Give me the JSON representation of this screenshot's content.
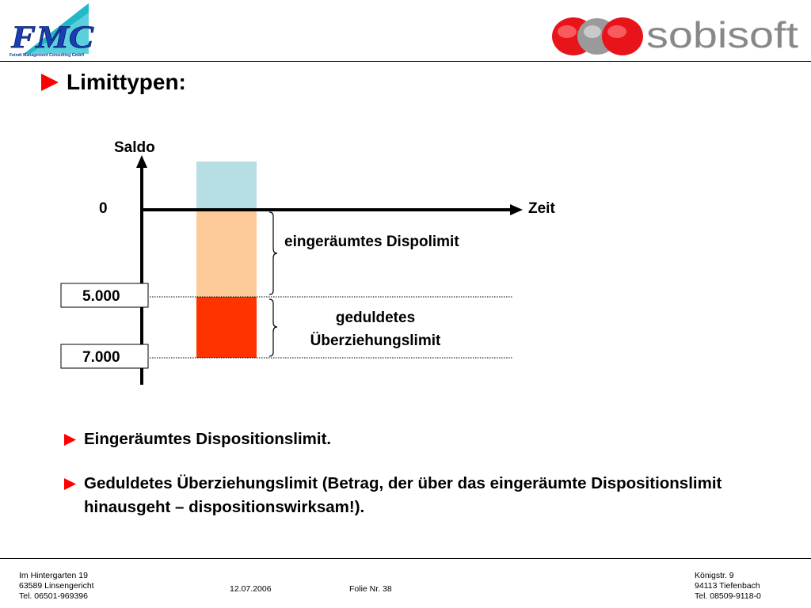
{
  "header": {
    "left_logo_text": "FMC",
    "left_logo_subtitle": "Feindt Management Consulting GmbH",
    "right_logo_text": "sobisoft"
  },
  "title": "Limittypen:",
  "diagram": {
    "y_axis_label": "Saldo",
    "x_axis_label": "Zeit",
    "zero_label": "0",
    "levels": [
      "5.000",
      "7.000"
    ],
    "brace_1_label": "eingeräumtes Dispolimit",
    "brace_2_label_line1": "geduldetes",
    "brace_2_label_line2": "Überziehungslimit",
    "colors": {
      "positive": "#b7dde5",
      "dispo": "#fdcb9a",
      "overdraft": "#ff3300"
    }
  },
  "bullets": [
    "Eingeräumtes Dispositionslimit.",
    "Geduldetes Überziehungslimit (Betrag, der über das eingeräumte Dispositionslimit hinausgeht – dispositionswirksam!)."
  ],
  "footer": {
    "left_line1": "Im Hintergarten 19",
    "left_line2": "63589 Linsengericht",
    "left_line3": "Tel. 06501-969396",
    "date": "12.07.2006",
    "slide": "Folie Nr. 38",
    "right_line1": "Königstr. 9",
    "right_line2": "94113 Tiefenbach",
    "right_line3": "Tel. 08509-9118-0"
  },
  "accent_color": "#ff0000"
}
